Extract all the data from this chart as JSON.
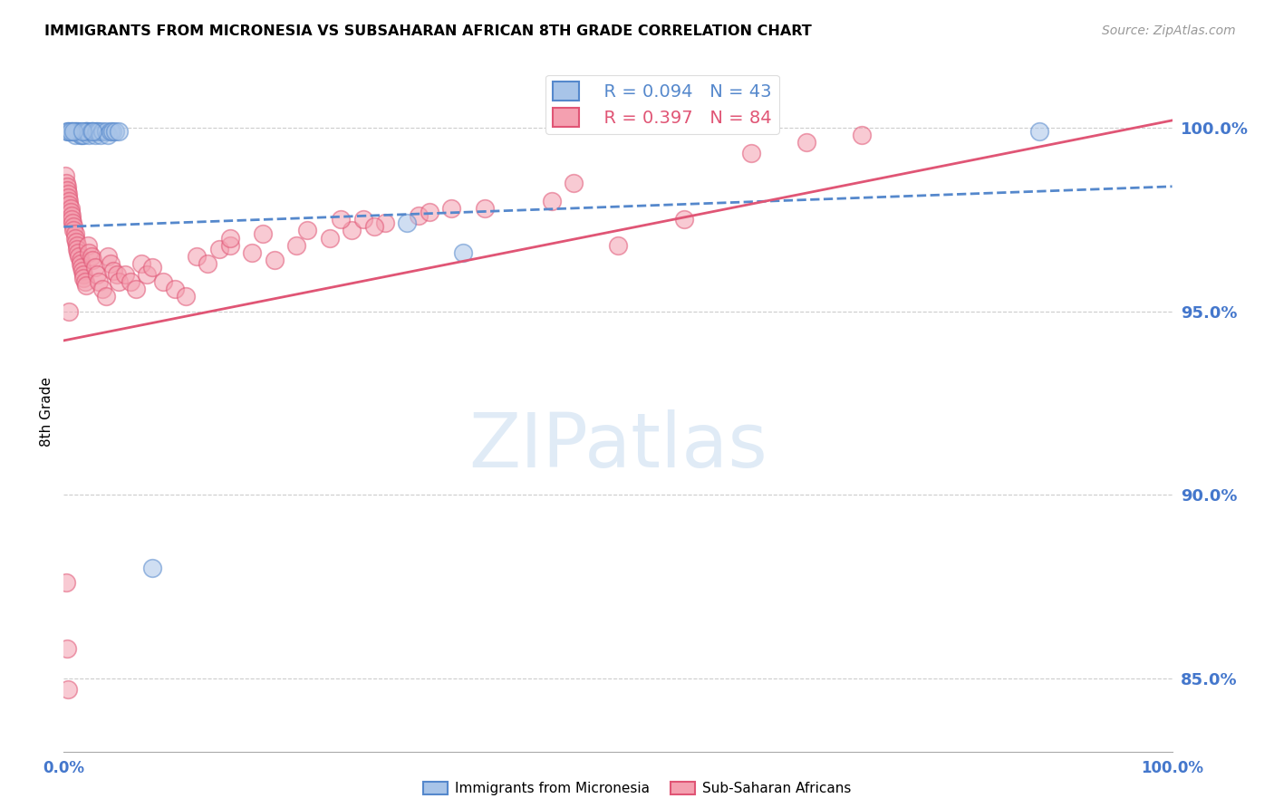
{
  "title": "IMMIGRANTS FROM MICRONESIA VS SUBSAHARAN AFRICAN 8TH GRADE CORRELATION CHART",
  "source": "Source: ZipAtlas.com",
  "ylabel": "8th Grade",
  "yticks": [
    0.85,
    0.9,
    0.95,
    1.0
  ],
  "ytick_labels": [
    "85.0%",
    "90.0%",
    "95.0%",
    "100.0%"
  ],
  "xlim": [
    0.0,
    1.0
  ],
  "ylim": [
    0.83,
    1.015
  ],
  "blue_R": 0.094,
  "blue_N": 43,
  "pink_R": 0.397,
  "pink_N": 84,
  "blue_fill": "#A8C4E8",
  "pink_fill": "#F4A0B0",
  "blue_edge": "#5588CC",
  "pink_edge": "#E05575",
  "axis_color": "#4477CC",
  "blue_scatter_x": [
    0.005,
    0.007,
    0.008,
    0.01,
    0.01,
    0.01,
    0.012,
    0.013,
    0.015,
    0.015,
    0.016,
    0.018,
    0.019,
    0.02,
    0.02,
    0.021,
    0.022,
    0.023,
    0.025,
    0.025,
    0.027,
    0.028,
    0.029,
    0.03,
    0.032,
    0.033,
    0.035,
    0.038,
    0.04,
    0.042,
    0.044,
    0.046,
    0.05,
    0.003,
    0.004,
    0.006,
    0.009,
    0.017,
    0.026,
    0.31,
    0.36,
    0.08,
    0.88
  ],
  "blue_scatter_y": [
    0.999,
    0.999,
    0.999,
    0.999,
    0.998,
    0.999,
    0.999,
    0.999,
    0.998,
    0.999,
    0.998,
    0.998,
    0.999,
    0.999,
    0.999,
    0.999,
    0.999,
    0.998,
    0.999,
    0.999,
    0.999,
    0.998,
    0.999,
    0.999,
    0.999,
    0.998,
    0.999,
    0.999,
    0.998,
    0.999,
    0.999,
    0.999,
    0.999,
    0.999,
    0.999,
    0.999,
    0.999,
    0.999,
    0.999,
    0.974,
    0.966,
    0.88,
    0.999
  ],
  "pink_scatter_x": [
    0.001,
    0.002,
    0.003,
    0.003,
    0.004,
    0.004,
    0.005,
    0.005,
    0.006,
    0.006,
    0.007,
    0.007,
    0.008,
    0.009,
    0.009,
    0.01,
    0.01,
    0.011,
    0.012,
    0.012,
    0.013,
    0.014,
    0.015,
    0.015,
    0.016,
    0.017,
    0.018,
    0.018,
    0.019,
    0.02,
    0.022,
    0.023,
    0.025,
    0.026,
    0.028,
    0.03,
    0.032,
    0.035,
    0.038,
    0.04,
    0.042,
    0.045,
    0.048,
    0.05,
    0.055,
    0.06,
    0.065,
    0.07,
    0.075,
    0.08,
    0.09,
    0.1,
    0.11,
    0.12,
    0.13,
    0.14,
    0.15,
    0.17,
    0.19,
    0.21,
    0.24,
    0.26,
    0.29,
    0.32,
    0.35,
    0.27,
    0.46,
    0.62,
    0.67,
    0.72,
    0.15,
    0.18,
    0.22,
    0.25,
    0.28,
    0.33,
    0.38,
    0.44,
    0.5,
    0.56,
    0.002,
    0.003,
    0.004,
    0.005
  ],
  "pink_scatter_y": [
    0.987,
    0.985,
    0.984,
    0.983,
    0.982,
    0.981,
    0.98,
    0.979,
    0.978,
    0.977,
    0.976,
    0.975,
    0.974,
    0.973,
    0.972,
    0.971,
    0.97,
    0.969,
    0.968,
    0.967,
    0.966,
    0.965,
    0.964,
    0.963,
    0.962,
    0.961,
    0.96,
    0.959,
    0.958,
    0.957,
    0.968,
    0.966,
    0.965,
    0.964,
    0.962,
    0.96,
    0.958,
    0.956,
    0.954,
    0.965,
    0.963,
    0.961,
    0.96,
    0.958,
    0.96,
    0.958,
    0.956,
    0.963,
    0.96,
    0.962,
    0.958,
    0.956,
    0.954,
    0.965,
    0.963,
    0.967,
    0.968,
    0.966,
    0.964,
    0.968,
    0.97,
    0.972,
    0.974,
    0.976,
    0.978,
    0.975,
    0.985,
    0.993,
    0.996,
    0.998,
    0.97,
    0.971,
    0.972,
    0.975,
    0.973,
    0.977,
    0.978,
    0.98,
    0.968,
    0.975,
    0.876,
    0.858,
    0.847,
    0.95
  ]
}
